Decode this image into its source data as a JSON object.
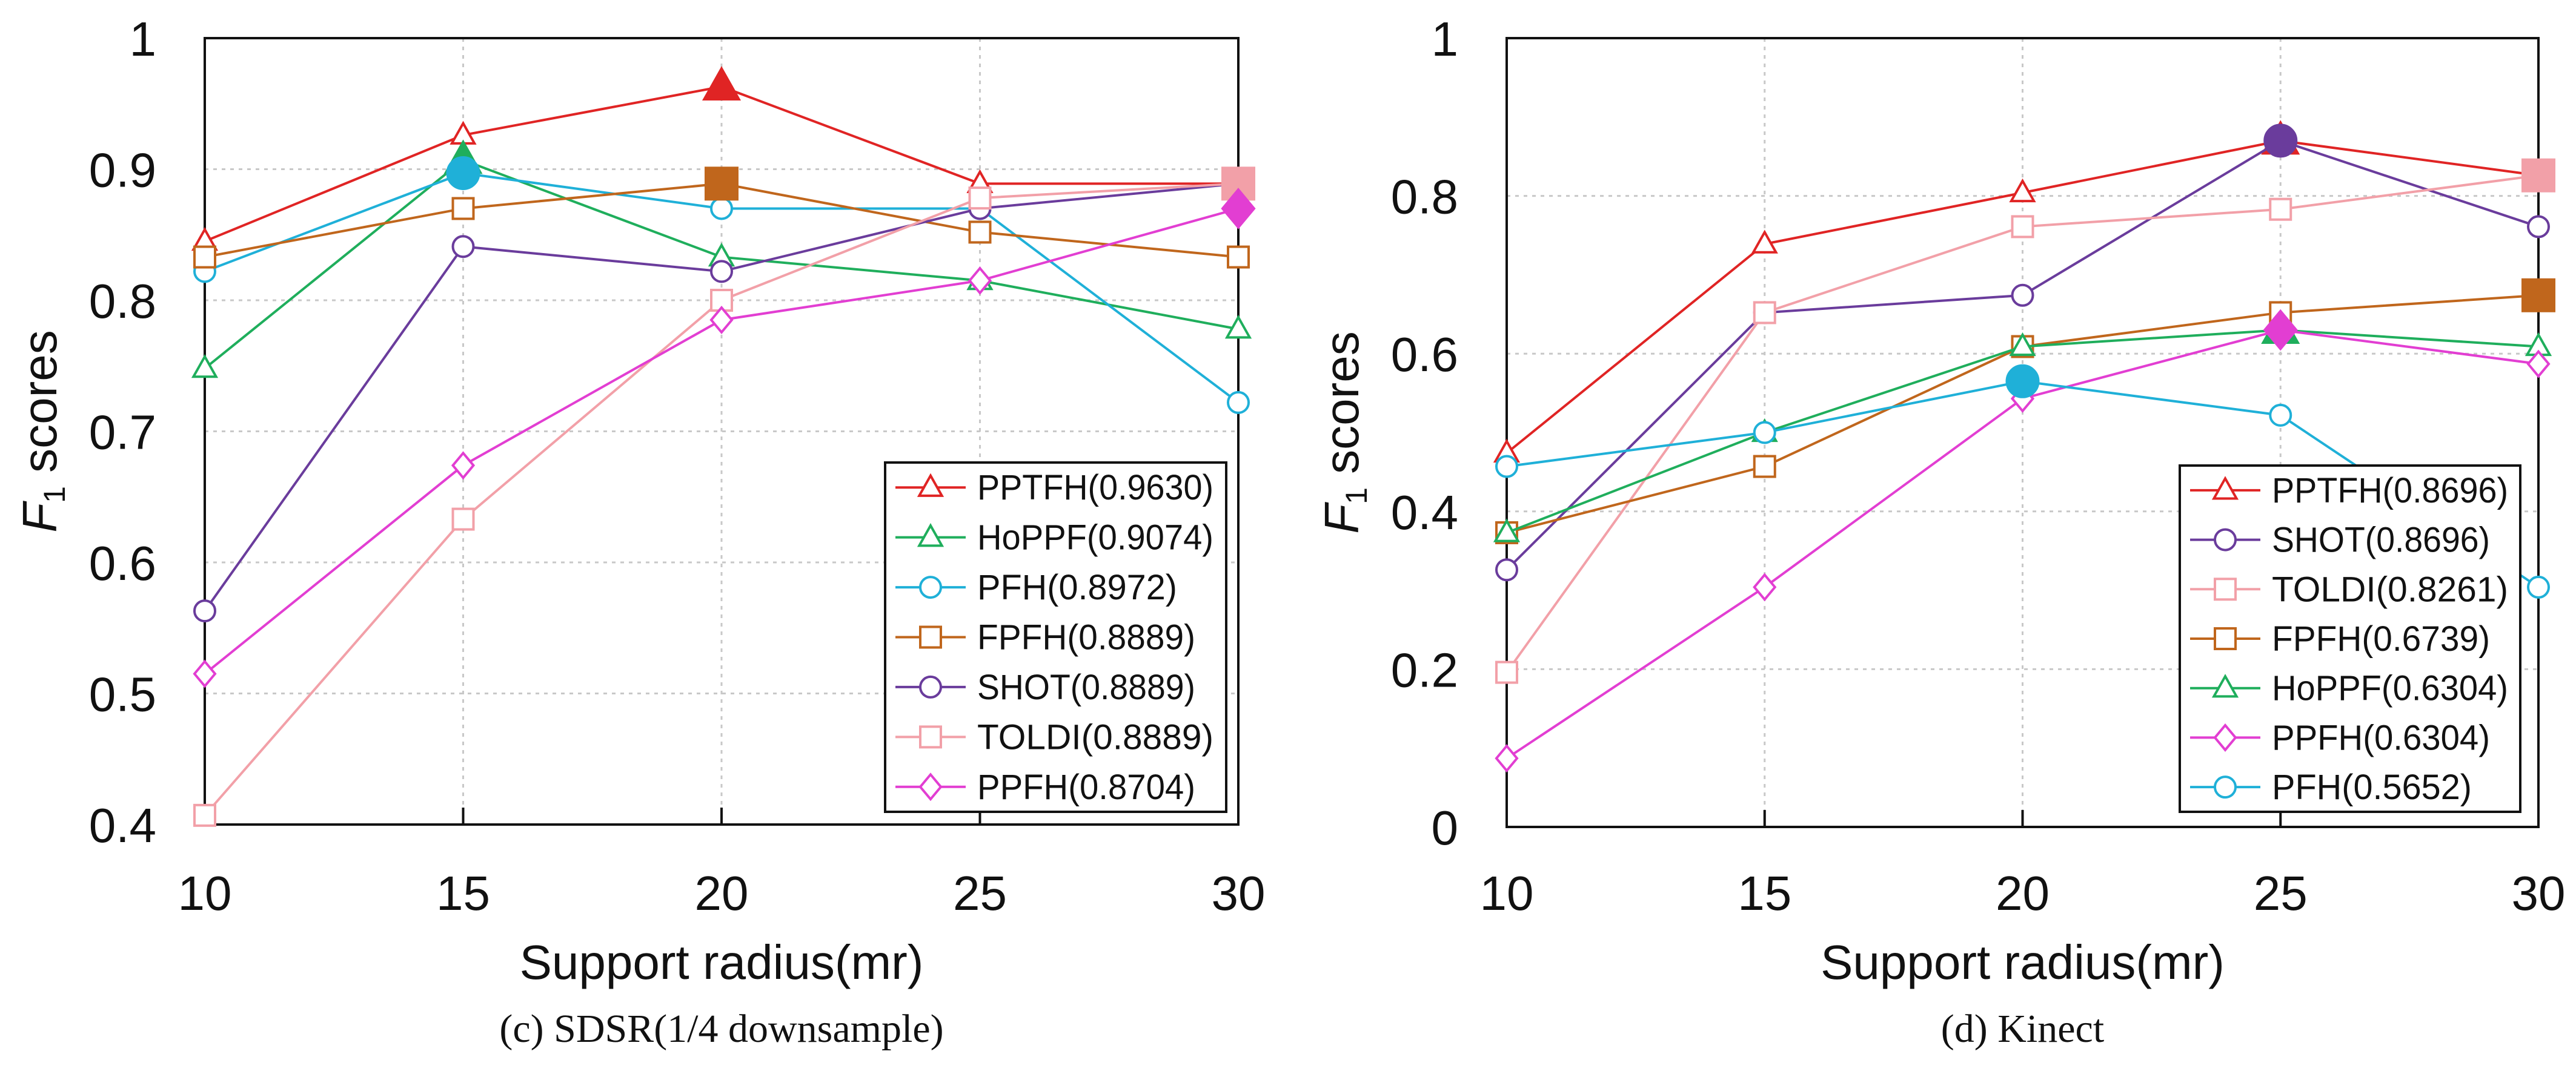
{
  "chart_data": [
    {
      "type": "line",
      "caption": "(c)  SDSR(1/4 downsample)",
      "xlabel": "Support radius(mr)",
      "ylabel_main": "F",
      "ylabel_sub": "1",
      "ylabel_rest": " scores",
      "x": [
        10,
        15,
        20,
        25,
        30
      ],
      "xticks": [
        "10",
        "15",
        "20",
        "25",
        "30"
      ],
      "ylim": [
        0.4,
        1.0
      ],
      "yticks": [
        0.4,
        0.5,
        0.6,
        0.7,
        0.8,
        0.9,
        1.0
      ],
      "ytick_labels": [
        "0.4",
        "0.5",
        "0.6",
        "0.7",
        "0.8",
        "0.9",
        "1"
      ],
      "grid": true,
      "legend_position": "bottom-right",
      "series": [
        {
          "name": "PPTFH(0.9630)",
          "color": "#e02424",
          "marker": "triangle",
          "best_x": 20,
          "values": [
            0.845,
            0.926,
            0.963,
            0.889,
            0.889
          ]
        },
        {
          "name": "HoPPF(0.9074)",
          "color": "#1fae5c",
          "marker": "triangle",
          "best_x": 15,
          "values": [
            0.748,
            0.907,
            0.833,
            0.815,
            0.778
          ]
        },
        {
          "name": "PFH(0.8972)",
          "color": "#1fb0d8",
          "marker": "circle",
          "best_x": 15,
          "values": [
            0.822,
            0.897,
            0.87,
            0.87,
            0.722
          ]
        },
        {
          "name": "FPFH(0.8889)",
          "color": "#c0661c",
          "marker": "square",
          "best_x": 20,
          "values": [
            0.833,
            0.87,
            0.889,
            0.852,
            0.833
          ]
        },
        {
          "name": "SHOT(0.8889)",
          "color": "#6a3c9c",
          "marker": "circle",
          "best_x": 30,
          "values": [
            0.563,
            0.841,
            0.822,
            0.87,
            0.889
          ]
        },
        {
          "name": "TOLDI(0.8889)",
          "color": "#f2a0a8",
          "marker": "square",
          "best_x": 30,
          "values": [
            0.407,
            0.633,
            0.8,
            0.878,
            0.889
          ]
        },
        {
          "name": "PPFH(0.8704)",
          "color": "#e23ed2",
          "marker": "diamond",
          "best_x": 30,
          "values": [
            0.515,
            0.674,
            0.785,
            0.815,
            0.87
          ]
        }
      ]
    },
    {
      "type": "line",
      "caption": "(d)  Kinect",
      "xlabel": "Support radius(mr)",
      "ylabel_main": "F",
      "ylabel_sub": "1",
      "ylabel_rest": " scores",
      "x": [
        10,
        15,
        20,
        25,
        30
      ],
      "xticks": [
        "10",
        "15",
        "20",
        "25",
        "30"
      ],
      "ylim": [
        0,
        1.0
      ],
      "yticks": [
        0,
        0.2,
        0.4,
        0.6,
        0.8,
        1.0
      ],
      "ytick_labels": [
        "0",
        "0.2",
        "0.4",
        "0.6",
        "0.8",
        "1"
      ],
      "grid": true,
      "legend_position": "bottom-right",
      "series": [
        {
          "name": "PPTFH(0.8696)",
          "color": "#e02424",
          "marker": "triangle",
          "best_x": 25,
          "values": [
            0.474,
            0.739,
            0.804,
            0.87,
            0.826
          ]
        },
        {
          "name": "SHOT(0.8696)",
          "color": "#6a3c9c",
          "marker": "circle",
          "best_x": 25,
          "values": [
            0.326,
            0.652,
            0.674,
            0.87,
            0.761
          ]
        },
        {
          "name": "TOLDI(0.8261)",
          "color": "#f2a0a8",
          "marker": "square",
          "best_x": 30,
          "values": [
            0.196,
            0.652,
            0.761,
            0.783,
            0.826
          ]
        },
        {
          "name": "FPFH(0.6739)",
          "color": "#c0661c",
          "marker": "square",
          "best_x": 30,
          "values": [
            0.373,
            0.457,
            0.609,
            0.652,
            0.674
          ]
        },
        {
          "name": "HoPPF(0.6304)",
          "color": "#1fae5c",
          "marker": "triangle",
          "best_x": 25,
          "values": [
            0.373,
            0.5,
            0.609,
            0.63,
            0.609
          ]
        },
        {
          "name": "PPFH(0.6304)",
          "color": "#e23ed2",
          "marker": "diamond",
          "best_x": 25,
          "values": [
            0.087,
            0.304,
            0.543,
            0.63,
            0.587
          ]
        },
        {
          "name": "PFH(0.5652)",
          "color": "#1fb0d8",
          "marker": "circle",
          "best_x": 20,
          "values": [
            0.457,
            0.5,
            0.565,
            0.522,
            0.304
          ]
        }
      ]
    }
  ]
}
